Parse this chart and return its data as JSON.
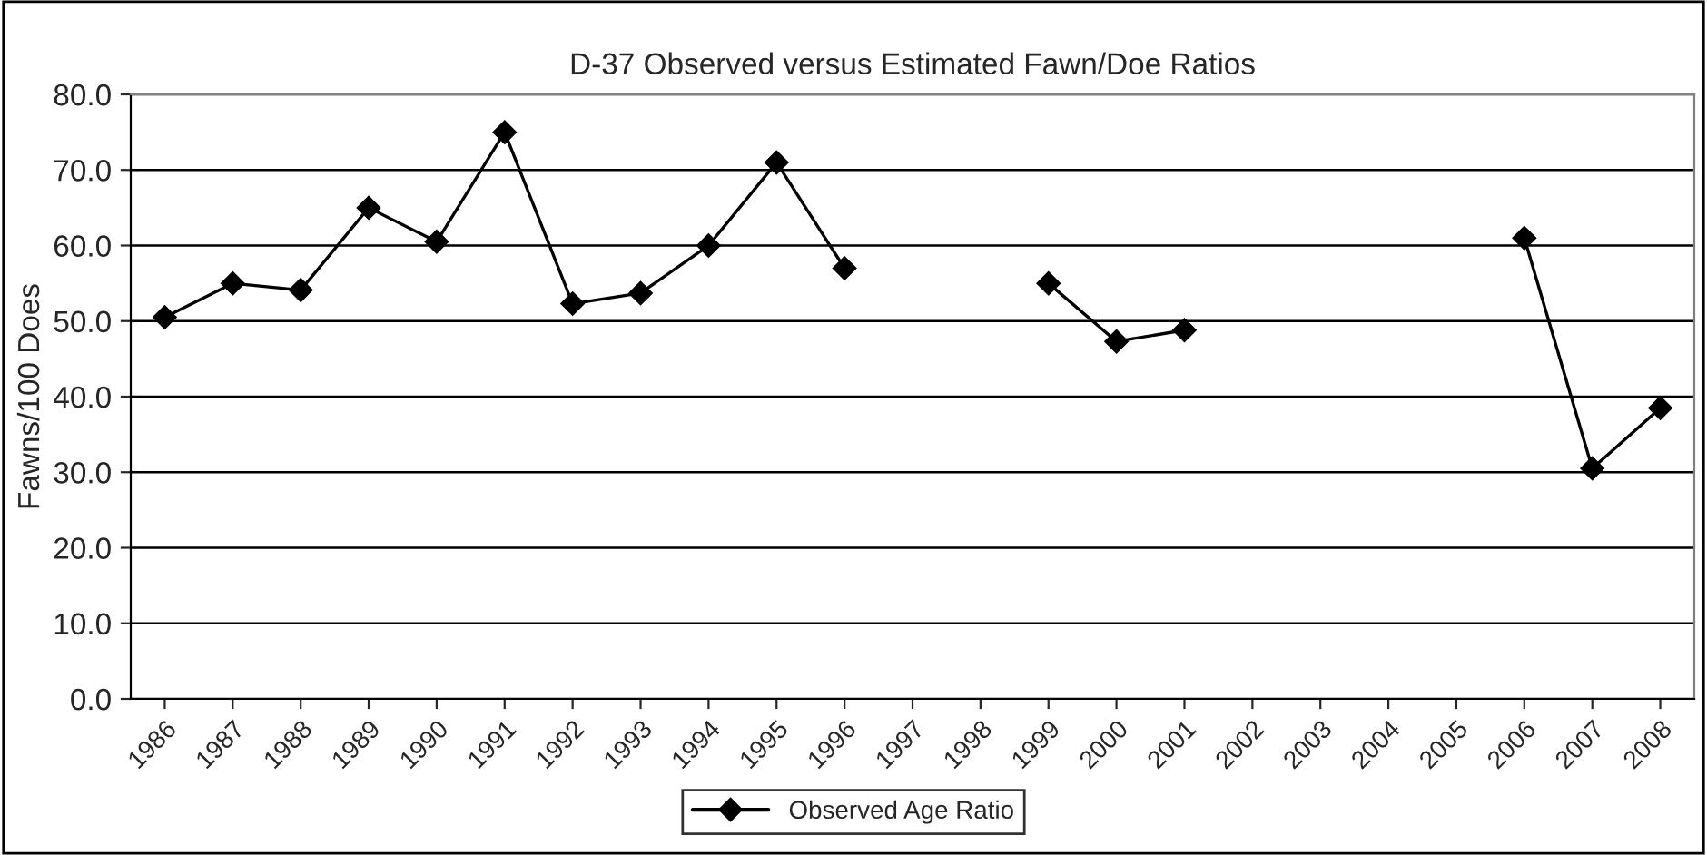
{
  "chart_data": {
    "type": "line",
    "title": "D-37 Observed versus Estimated Fawn/Doe Ratios",
    "ylabel": "Fawns/100 Does",
    "categories": [
      "1986",
      "1987",
      "1988",
      "1989",
      "1990",
      "1991",
      "1992",
      "1993",
      "1994",
      "1995",
      "1996",
      "1997",
      "1998",
      "1999",
      "2000",
      "2001",
      "2002",
      "2003",
      "2004",
      "2005",
      "2006",
      "2007",
      "2008"
    ],
    "series": [
      {
        "name": "Observed Age Ratio",
        "color": "#000000",
        "values": [
          50.5,
          55.0,
          54.1,
          65.0,
          60.5,
          75.0,
          52.3,
          53.7,
          60.0,
          71.0,
          57.0,
          null,
          null,
          55.0,
          47.3,
          48.8,
          null,
          null,
          null,
          null,
          61.0,
          30.5,
          38.5
        ]
      }
    ],
    "ylim": [
      0,
      80
    ],
    "yticks": [
      {
        "value": 0,
        "label": "0.0"
      },
      {
        "value": 10,
        "label": "10.0"
      },
      {
        "value": 20,
        "label": "20.0"
      },
      {
        "value": 30,
        "label": "30.0"
      },
      {
        "value": 40,
        "label": "40.0"
      },
      {
        "value": 50,
        "label": "50.0"
      },
      {
        "value": 60,
        "label": "60.0"
      },
      {
        "value": 70,
        "label": "70.0"
      },
      {
        "value": 80,
        "label": "80.0"
      }
    ],
    "grid": "y",
    "legend": "bottom",
    "marker": "diamond",
    "line_style": "solid"
  }
}
